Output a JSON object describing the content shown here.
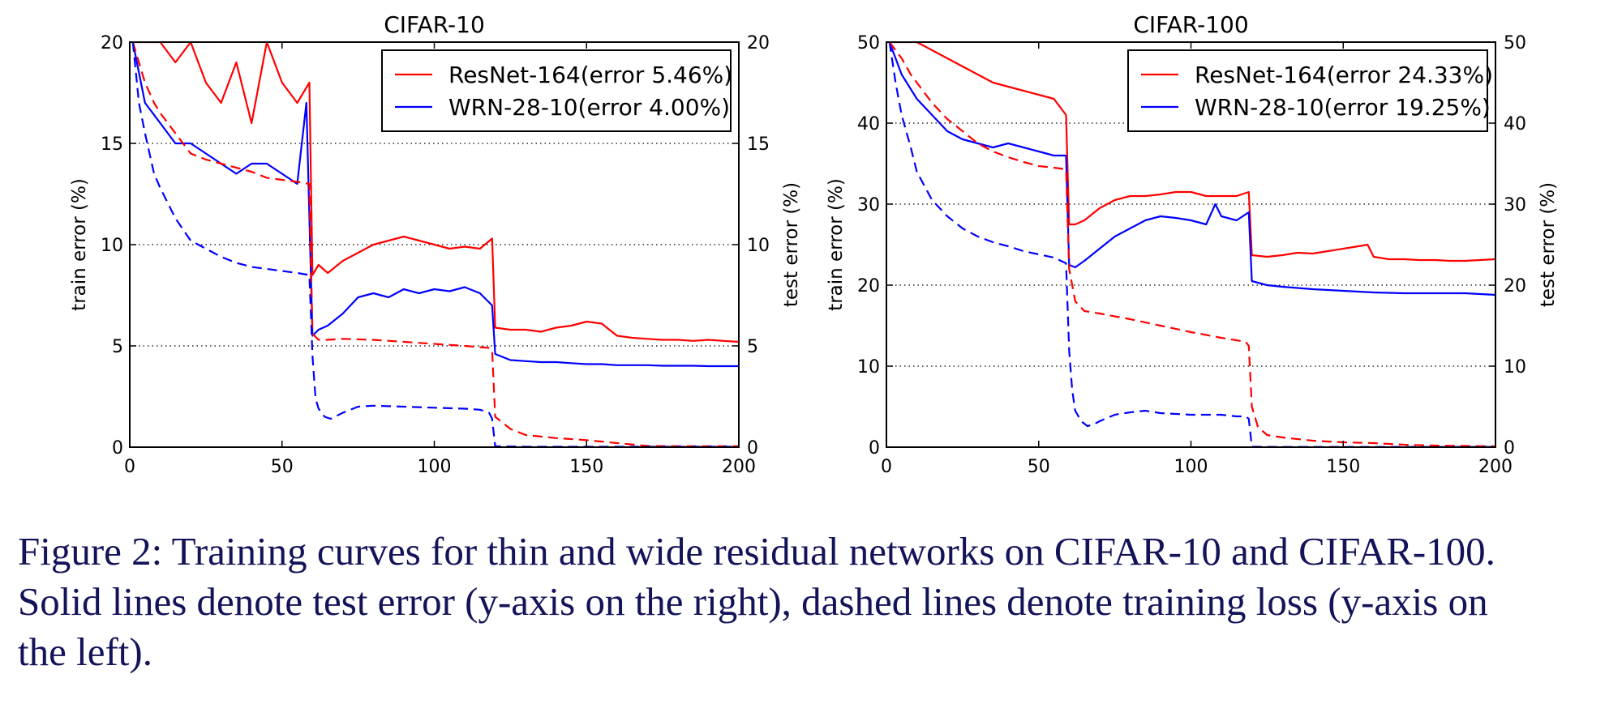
{
  "caption": {
    "line1": "Figure 2: Training curves for thin and wide residual networks on CIFAR-10 and CIFAR-100.",
    "line2": "Solid lines denote test error (y-axis on the right), dashed lines denote training loss (y-axis on",
    "line3": "the left)."
  },
  "colors": {
    "resnet": "#ff0000",
    "wrn": "#0000ff",
    "grid": "#000000"
  },
  "chart_data": [
    {
      "type": "line",
      "title": "CIFAR-10",
      "xlabel": "",
      "ylabel_left": "train error (%)",
      "ylabel_right": "test error (%)",
      "xlim": [
        0,
        200
      ],
      "ylim": [
        0,
        20
      ],
      "xticks": [
        0,
        50,
        100,
        150,
        200
      ],
      "yticks": [
        0,
        5,
        10,
        15,
        20
      ],
      "grid": "horizontal dotted",
      "legend_position": "top-right",
      "series": [
        {
          "name": "ResNet-164(error 5.46%)",
          "color": "#ff0000",
          "style": "solid",
          "role": "test error",
          "x": [
            1,
            5,
            10,
            15,
            20,
            25,
            30,
            35,
            40,
            45,
            50,
            55,
            59,
            60,
            62,
            65,
            70,
            75,
            80,
            85,
            90,
            95,
            100,
            105,
            110,
            115,
            119,
            120,
            125,
            130,
            135,
            140,
            145,
            150,
            155,
            160,
            165,
            170,
            175,
            180,
            185,
            190,
            195,
            200
          ],
          "y": [
            20,
            20,
            20,
            19,
            20,
            18,
            17,
            19,
            16,
            20,
            18,
            17,
            18,
            8.5,
            9,
            8.6,
            9.2,
            9.6,
            10,
            10.2,
            10.4,
            10.2,
            10,
            9.8,
            9.9,
            9.8,
            10.3,
            5.9,
            5.8,
            5.8,
            5.7,
            5.9,
            6,
            6.2,
            6.1,
            5.5,
            5.4,
            5.35,
            5.3,
            5.3,
            5.25,
            5.3,
            5.25,
            5.2
          ]
        },
        {
          "name": "WRN-28-10(error 4.00%)",
          "color": "#0000ff",
          "style": "solid",
          "role": "test error",
          "x": [
            1,
            5,
            10,
            15,
            20,
            25,
            30,
            35,
            40,
            45,
            50,
            55,
            58,
            60,
            62,
            65,
            70,
            75,
            80,
            85,
            90,
            95,
            100,
            105,
            110,
            115,
            119,
            120,
            125,
            130,
            135,
            140,
            145,
            150,
            155,
            160,
            165,
            170,
            175,
            180,
            185,
            190,
            195,
            200
          ],
          "y": [
            20,
            17,
            16,
            15,
            15,
            14.5,
            14,
            13.5,
            14,
            14,
            13.5,
            13,
            17,
            5.5,
            5.8,
            6,
            6.6,
            7.4,
            7.6,
            7.4,
            7.8,
            7.6,
            7.8,
            7.7,
            7.9,
            7.6,
            7,
            4.6,
            4.3,
            4.25,
            4.2,
            4.2,
            4.15,
            4.1,
            4.1,
            4.05,
            4.05,
            4.05,
            4.02,
            4.02,
            4.02,
            4,
            4,
            4
          ]
        },
        {
          "name": "",
          "color": "#ff0000",
          "style": "dashed",
          "role": "train error",
          "x": [
            1,
            3,
            5,
            8,
            10,
            15,
            20,
            25,
            30,
            35,
            40,
            45,
            50,
            55,
            59,
            60,
            62,
            65,
            70,
            80,
            90,
            100,
            110,
            118,
            119,
            120,
            125,
            130,
            140,
            150,
            160,
            170,
            180,
            190,
            200
          ],
          "y": [
            20,
            19,
            18,
            17,
            16.5,
            15.5,
            14.5,
            14.2,
            14,
            13.8,
            13.6,
            13.3,
            13.2,
            13.1,
            13,
            5.6,
            5.3,
            5.3,
            5.35,
            5.3,
            5.2,
            5.1,
            5,
            4.9,
            4.8,
            1.5,
            0.9,
            0.6,
            0.45,
            0.35,
            0.2,
            0.06,
            0.05,
            0.05,
            0.05
          ]
        },
        {
          "name": "",
          "color": "#0000ff",
          "style": "dashed",
          "role": "train error",
          "x": [
            1,
            3,
            5,
            8,
            10,
            15,
            20,
            25,
            30,
            35,
            40,
            45,
            50,
            55,
            59,
            60,
            61,
            62,
            64,
            66,
            70,
            75,
            80,
            90,
            100,
            110,
            115,
            118,
            119,
            120,
            130,
            150,
            170,
            200
          ],
          "y": [
            20,
            17,
            15.5,
            13.5,
            12.8,
            11.3,
            10.2,
            9.8,
            9.4,
            9.1,
            8.9,
            8.8,
            8.7,
            8.6,
            8.5,
            4.5,
            2.4,
            1.9,
            1.5,
            1.4,
            1.7,
            2,
            2.05,
            2,
            1.95,
            1.9,
            1.85,
            1.7,
            1.4,
            0.05,
            0.02,
            0.02,
            0.02,
            0.02
          ]
        }
      ]
    },
    {
      "type": "line",
      "title": "CIFAR-100",
      "xlabel": "",
      "ylabel_left": "train error (%)",
      "ylabel_right": "test error (%)",
      "xlim": [
        0,
        200
      ],
      "ylim": [
        0,
        50
      ],
      "xticks": [
        0,
        50,
        100,
        150,
        200
      ],
      "yticks": [
        0,
        10,
        20,
        30,
        40,
        50
      ],
      "grid": "horizontal dotted",
      "legend_position": "top-right",
      "series": [
        {
          "name": "ResNet-164(error 24.33%)",
          "color": "#ff0000",
          "style": "solid",
          "role": "test error",
          "x": [
            1,
            5,
            10,
            15,
            20,
            25,
            30,
            35,
            40,
            45,
            50,
            55,
            59,
            60,
            62,
            65,
            70,
            75,
            80,
            85,
            90,
            95,
            100,
            105,
            110,
            115,
            119,
            120,
            125,
            130,
            135,
            140,
            145,
            150,
            155,
            158,
            160,
            165,
            170,
            175,
            180,
            185,
            190,
            195,
            200
          ],
          "y": [
            50,
            50,
            50,
            49,
            48,
            47,
            46,
            45,
            44.5,
            44,
            43.5,
            43,
            41,
            27.5,
            27.5,
            28,
            29.5,
            30.5,
            31,
            31,
            31.2,
            31.5,
            31.5,
            31,
            31,
            31,
            31.5,
            23.7,
            23.5,
            23.7,
            24,
            23.9,
            24.2,
            24.5,
            24.8,
            25,
            23.5,
            23.2,
            23.2,
            23.1,
            23.1,
            23,
            23,
            23.1,
            23.2
          ]
        },
        {
          "name": "WRN-28-10(error 19.25%)",
          "color": "#0000ff",
          "style": "solid",
          "role": "test error",
          "x": [
            1,
            5,
            10,
            15,
            20,
            25,
            30,
            35,
            40,
            45,
            50,
            55,
            59,
            60,
            62,
            65,
            70,
            75,
            80,
            85,
            90,
            95,
            100,
            105,
            108,
            110,
            115,
            119,
            120,
            125,
            130,
            140,
            150,
            160,
            170,
            180,
            190,
            200
          ],
          "y": [
            50,
            46,
            43,
            41,
            39,
            38,
            37.5,
            37,
            37.5,
            37,
            36.5,
            36,
            36,
            22.5,
            22.2,
            23,
            24.5,
            26,
            27,
            28,
            28.5,
            28.3,
            28,
            27.5,
            30,
            28.5,
            28,
            29,
            20.5,
            20,
            19.8,
            19.5,
            19.3,
            19.1,
            19,
            19,
            19,
            18.8
          ]
        },
        {
          "name": "",
          "color": "#ff0000",
          "style": "dashed",
          "role": "train error",
          "x": [
            1,
            3,
            5,
            8,
            10,
            15,
            20,
            25,
            30,
            35,
            40,
            45,
            50,
            55,
            59,
            60,
            61,
            62,
            65,
            70,
            80,
            90,
            100,
            110,
            118,
            119,
            120,
            122,
            125,
            130,
            140,
            150,
            160,
            170,
            180,
            190,
            200
          ],
          "y": [
            50,
            49,
            48,
            46,
            45,
            42.5,
            40.5,
            39,
            37.5,
            36.5,
            35.8,
            35.2,
            34.7,
            34.5,
            34.3,
            22,
            20,
            18,
            16.8,
            16.5,
            15.8,
            15,
            14.2,
            13.5,
            13,
            12.5,
            5,
            2.5,
            1.5,
            1.2,
            0.8,
            0.6,
            0.5,
            0.3,
            0.2,
            0.15,
            0.1
          ]
        },
        {
          "name": "",
          "color": "#0000ff",
          "style": "dashed",
          "role": "train error",
          "x": [
            1,
            3,
            5,
            8,
            10,
            15,
            20,
            25,
            30,
            35,
            40,
            45,
            50,
            55,
            59,
            60,
            61,
            62,
            64,
            66,
            68,
            70,
            75,
            80,
            85,
            90,
            100,
            110,
            115,
            118,
            119,
            120,
            130,
            150,
            170,
            200
          ],
          "y": [
            50,
            45,
            41,
            37,
            34,
            30.5,
            28.5,
            27,
            26,
            25.3,
            24.8,
            24.2,
            23.8,
            23.4,
            22.7,
            12,
            7,
            4.5,
            3.2,
            2.6,
            2.8,
            3.2,
            4,
            4.3,
            4.5,
            4.2,
            4,
            4,
            3.8,
            3.8,
            3.5,
            0.05,
            0.03,
            0.03,
            0.03,
            0.03
          ]
        }
      ]
    }
  ]
}
